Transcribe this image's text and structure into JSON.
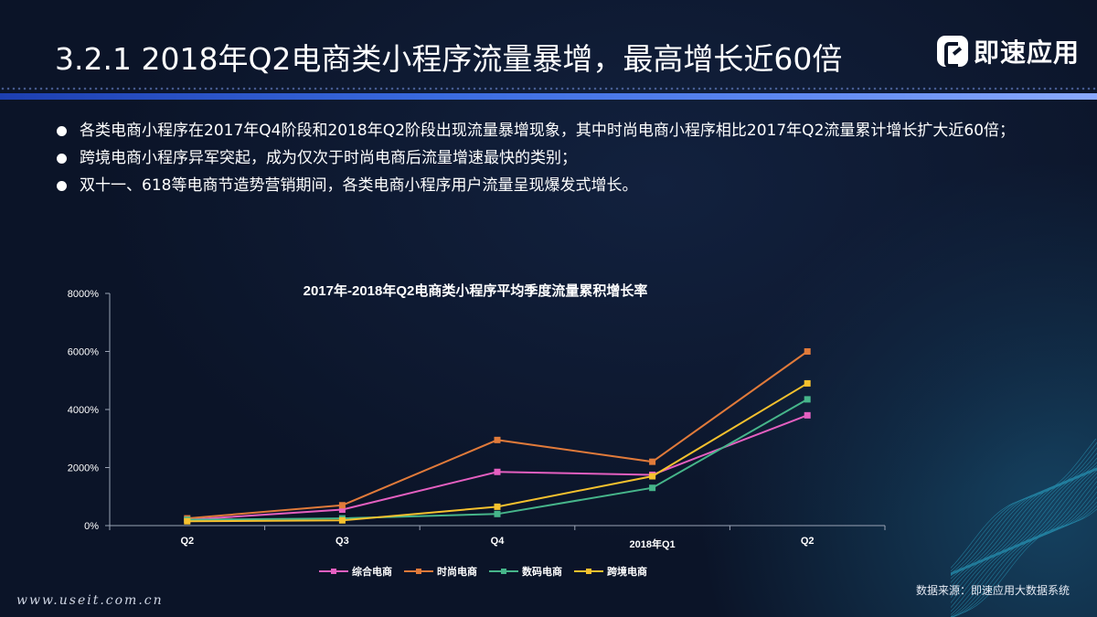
{
  "header": {
    "title": "3.2.1 2018年Q2电商类小程序流量暴增，最高增长近60倍",
    "logo_text": "即速应用"
  },
  "bullets": [
    "各类电商小程序在2017年Q4阶段和2018年Q2阶段出现流量暴增现象，其中时尚电商小程序相比2017年Q2流量累计增长扩大近60倍；",
    "跨境电商小程序异军突起，成为仅次于时尚电商后流量增速最快的类别；",
    "双十一、618等电商节造势营销期间，各类电商小程序用户流量呈现爆发式增长。"
  ],
  "chart_data": {
    "type": "line",
    "title": "2017年-2018年Q2电商类小程序平均季度流量累积增长率",
    "categories": [
      "Q2",
      "Q3",
      "Q4",
      "2018年Q1",
      "Q2"
    ],
    "yticks": [
      "0%",
      "2000%",
      "4000%",
      "6000%",
      "8000%"
    ],
    "ylim": [
      0,
      8000
    ],
    "series": [
      {
        "name": "综合电商",
        "color": "#e45fc0",
        "values": [
          200,
          550,
          1850,
          1750,
          3800
        ]
      },
      {
        "name": "时尚电商",
        "color": "#e07a3a",
        "values": [
          250,
          700,
          2950,
          2200,
          6000
        ]
      },
      {
        "name": "数码电商",
        "color": "#46b58a",
        "values": [
          200,
          250,
          400,
          1300,
          4350
        ]
      },
      {
        "name": "跨境电商",
        "color": "#f5c12e",
        "values": [
          150,
          180,
          650,
          1700,
          4900
        ]
      }
    ],
    "legend_position": "bottom",
    "grid": false
  },
  "footer": {
    "source": "数据来源：即速应用大数据系统",
    "watermark": "www.useit.com.cn"
  }
}
